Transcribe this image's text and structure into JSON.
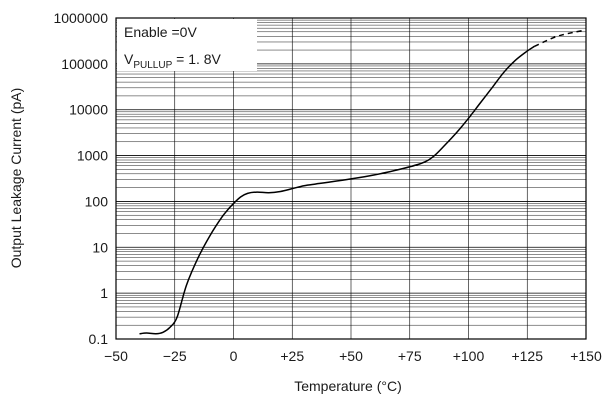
{
  "chart_data": {
    "type": "line",
    "xlabel": "Temperature (°C)",
    "ylabel": "Output Leakage Current (pA)",
    "xlim": [
      -50,
      150
    ],
    "ylim": [
      0.1,
      1000000
    ],
    "yscale": "log",
    "grid": true,
    "x_ticks": [
      -50,
      -25,
      0,
      25,
      50,
      75,
      100,
      125,
      150
    ],
    "x_tick_labels": [
      "−50",
      "−25",
      "0",
      "+25",
      "+50",
      "+75",
      "+100",
      "+125",
      "+150"
    ],
    "y_ticks": [
      0.1,
      1,
      10,
      100,
      1000,
      10000,
      100000,
      1000000
    ],
    "y_tick_labels": [
      "0.1",
      "1",
      "10",
      "100",
      "1000",
      "10000",
      "100000",
      "1000000"
    ],
    "legend": {
      "line1": "Enable =0V",
      "line2_prefix": "V",
      "line2_sub": "PULLUP",
      "line2_suffix": " = 1. 8V",
      "placement": "top-left"
    },
    "series": [
      {
        "style": "solid",
        "color": "#000000",
        "x": [
          -40,
          -37,
          -33,
          -30,
          -27,
          -24,
          -20,
          -15,
          -10,
          -5,
          -2,
          0,
          3,
          6,
          10,
          15,
          20,
          25,
          30,
          35,
          40,
          50,
          60,
          70,
          80,
          85,
          90,
          95,
          100,
          105,
          110,
          115,
          120,
          125,
          128
        ],
        "y": [
          0.13,
          0.135,
          0.13,
          0.14,
          0.18,
          0.3,
          1.5,
          6,
          18,
          45,
          70,
          90,
          125,
          150,
          160,
          155,
          165,
          190,
          220,
          240,
          260,
          310,
          380,
          490,
          680,
          950,
          1700,
          3200,
          6500,
          14000,
          30000,
          65000,
          120000,
          190000,
          240000
        ]
      },
      {
        "style": "dashed",
        "color": "#000000",
        "x": [
          128,
          132,
          136,
          140,
          145,
          150
        ],
        "y": [
          240000,
          300000,
          370000,
          430000,
          490000,
          550000
        ]
      }
    ]
  }
}
